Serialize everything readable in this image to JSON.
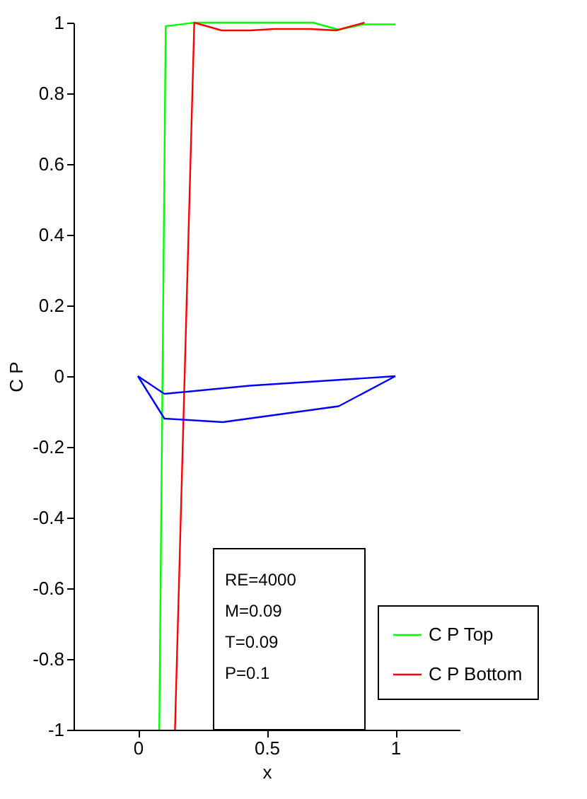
{
  "chart_data": {
    "type": "line",
    "xlabel": "x",
    "ylabel": "C P",
    "xlim": [
      -0.25,
      1.25
    ],
    "xticks": [
      0,
      0.5,
      1
    ],
    "ylim": [
      -1,
      1
    ],
    "yticks": [
      -1,
      -0.8,
      -0.6,
      -0.4,
      -0.2,
      0,
      0.2,
      0.4,
      0.6,
      0.8,
      1
    ],
    "grid": false,
    "legend": "bottom right",
    "line_style": "solid",
    "annotations": [
      "RE=4000",
      "M=0.09",
      "T=0.09",
      "P=0.1"
    ],
    "series": [
      {
        "name": "C P Top",
        "color": "#00ff00",
        "x": [
          0.083,
          0.108,
          0.22,
          0.68,
          0.78,
          0.875,
          1.0
        ],
        "values": [
          -1,
          0.99,
          1,
          1,
          0.98,
          0.995,
          0.995
        ]
      },
      {
        "name": "C P Bottom",
        "color": "#ff0000",
        "x": [
          0.144,
          0.219,
          0.325,
          0.436,
          0.53,
          0.67,
          0.77,
          0.88
        ],
        "values": [
          -1,
          1,
          0.978,
          0.978,
          0.982,
          0.982,
          0.978,
          1
        ]
      },
      {
        "color": "#0000ff",
        "x": [
          0,
          0.103,
          0.433,
          1.0
        ],
        "values": [
          0,
          -0.05,
          -0.027,
          0
        ]
      },
      {
        "color": "#0000ff",
        "x": [
          0,
          0.103,
          0.33,
          0.78,
          1.0
        ],
        "values": [
          0,
          -0.12,
          -0.13,
          -0.085,
          0
        ]
      }
    ]
  }
}
